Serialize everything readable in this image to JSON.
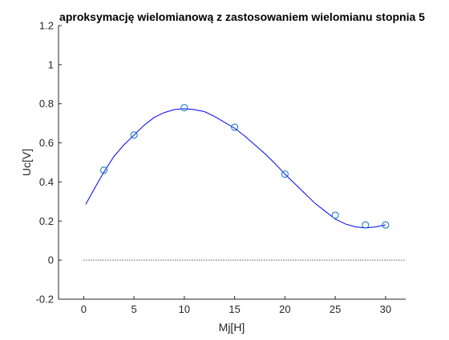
{
  "chart_data": {
    "type": "line",
    "title": "aproksymację wielomianową z zastosowaniem wielomianu stopnia 5",
    "xlabel": "Mj[H]",
    "ylabel": "Uc[V]",
    "xlim": [
      -2.5,
      32
    ],
    "ylim": [
      -0.2,
      1.2
    ],
    "xticks": [
      0,
      5,
      10,
      15,
      20,
      25,
      30
    ],
    "xtick_labels": [
      "0",
      "5",
      "10",
      "15",
      "20",
      "25",
      "30"
    ],
    "yticks": [
      -0.2,
      0,
      0.2,
      0.4,
      0.6,
      0.8,
      1,
      1.2
    ],
    "ytick_labels": [
      "-0.2",
      "0",
      "0.2",
      "0.4",
      "0.6",
      "0.8",
      "1",
      "1.2"
    ],
    "grid": false,
    "box": "left-bottom",
    "colors": {
      "fit_line": "#0000ff",
      "markers": "#0072bd",
      "zero_line": "#000000",
      "axes": "#262626"
    },
    "series": [
      {
        "kind": "markers",
        "marker": "circle",
        "x": [
          2,
          5,
          10,
          15,
          20,
          25,
          28,
          30
        ],
        "y": [
          0.46,
          0.64,
          0.78,
          0.68,
          0.44,
          0.23,
          0.18,
          0.18
        ]
      },
      {
        "kind": "line",
        "style": "solid",
        "x": [
          0.2,
          1,
          2,
          3,
          4,
          5,
          6,
          7,
          8,
          9,
          10,
          11,
          12,
          13,
          14,
          15,
          16,
          17,
          18,
          19,
          20,
          21,
          22,
          23,
          24,
          25,
          26,
          27,
          28,
          29,
          30
        ],
        "y": [
          0.285,
          0.36,
          0.45,
          0.53,
          0.59,
          0.64,
          0.69,
          0.73,
          0.755,
          0.77,
          0.775,
          0.77,
          0.76,
          0.735,
          0.705,
          0.675,
          0.635,
          0.59,
          0.545,
          0.495,
          0.44,
          0.39,
          0.34,
          0.29,
          0.25,
          0.21,
          0.185,
          0.17,
          0.165,
          0.17,
          0.18
        ]
      },
      {
        "kind": "line",
        "style": "dotted",
        "x": [
          0,
          32
        ],
        "y": [
          0,
          0
        ]
      }
    ]
  }
}
